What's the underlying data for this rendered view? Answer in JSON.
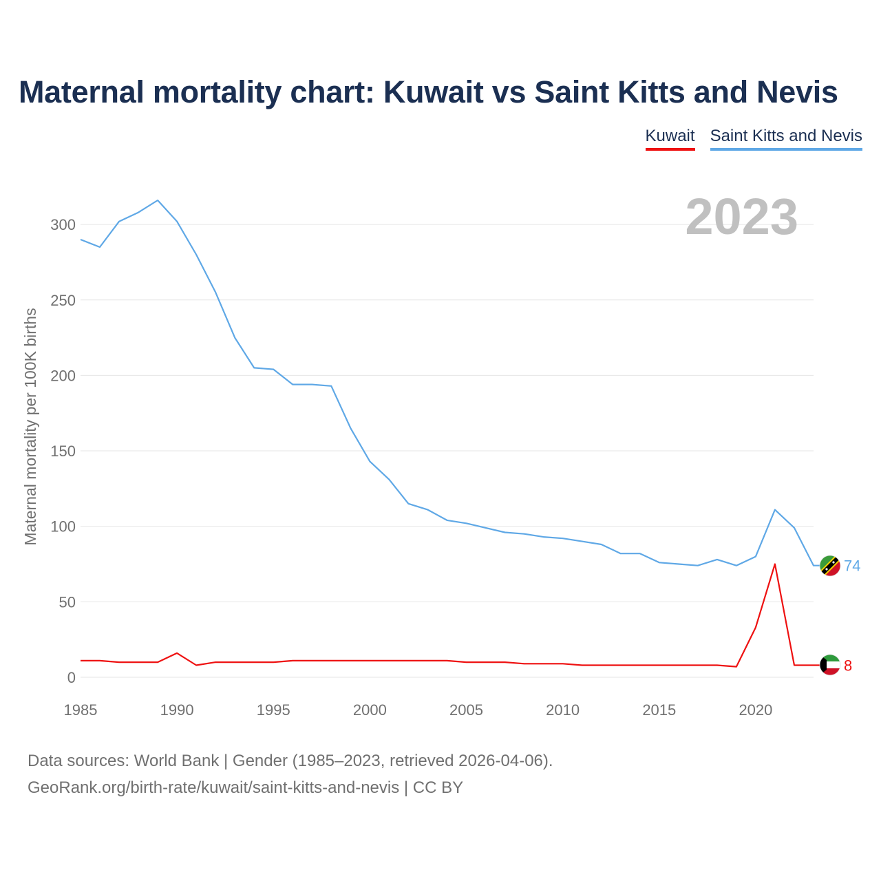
{
  "title": "Maternal mortality chart: Kuwait vs Saint Kitts and Nevis",
  "legend": {
    "kuwait": "Kuwait",
    "skn": "Saint Kitts and Nevis"
  },
  "year_label": "2023",
  "source_line1": "Data sources: World Bank | Gender (1985–2023, retrieved 2026-04-06).",
  "source_line2": "GeoRank.org/birth-rate/kuwait/saint-kitts-and-nevis | CC BY",
  "colors": {
    "kuwait": "#ee1111",
    "skn": "#5fa8e6",
    "grid": "#e6e6e6",
    "axis_text": "#707070",
    "year": "#c0c0c0"
  },
  "chart_data": {
    "type": "line",
    "title": "Maternal mortality chart: Kuwait vs Saint Kitts and Nevis",
    "xlabel": "",
    "ylabel": "Maternal mortality per 100K births",
    "xlim": [
      1985,
      2023
    ],
    "ylim": [
      0,
      320
    ],
    "xticks": [
      1985,
      1990,
      1995,
      2000,
      2005,
      2010,
      2015,
      2020
    ],
    "yticks": [
      0,
      50,
      100,
      150,
      200,
      250,
      300
    ],
    "grid": true,
    "x": [
      1985,
      1986,
      1987,
      1988,
      1989,
      1990,
      1991,
      1992,
      1993,
      1994,
      1995,
      1996,
      1997,
      1998,
      1999,
      2000,
      2001,
      2002,
      2003,
      2004,
      2005,
      2006,
      2007,
      2008,
      2009,
      2010,
      2011,
      2012,
      2013,
      2014,
      2015,
      2016,
      2017,
      2018,
      2019,
      2020,
      2021,
      2022,
      2023
    ],
    "series": [
      {
        "name": "Kuwait",
        "color": "#ee1111",
        "end_label": "8",
        "values": [
          11,
          11,
          10,
          10,
          10,
          16,
          8,
          10,
          10,
          10,
          10,
          11,
          11,
          11,
          11,
          11,
          11,
          11,
          11,
          11,
          10,
          10,
          10,
          9,
          9,
          9,
          8,
          8,
          8,
          8,
          8,
          8,
          8,
          8,
          7,
          33,
          75,
          8,
          8
        ]
      },
      {
        "name": "Saint Kitts and Nevis",
        "color": "#5fa8e6",
        "end_label": "74",
        "values": [
          290,
          285,
          302,
          308,
          316,
          302,
          280,
          255,
          225,
          205,
          204,
          194,
          194,
          193,
          165,
          143,
          131,
          115,
          111,
          104,
          102,
          99,
          96,
          95,
          93,
          92,
          90,
          88,
          82,
          82,
          76,
          75,
          74,
          78,
          74,
          80,
          111,
          99,
          74
        ]
      }
    ]
  }
}
